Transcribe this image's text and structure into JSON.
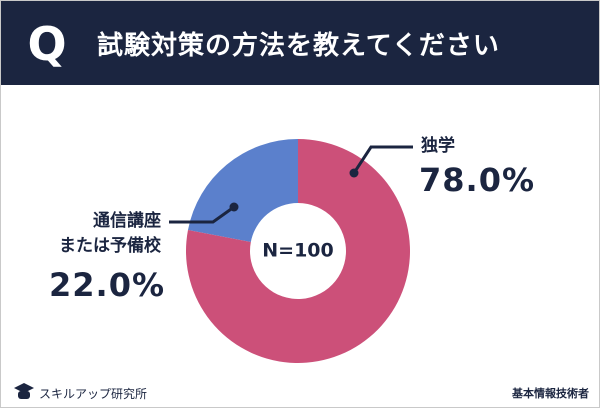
{
  "chart_data": {
    "type": "donut",
    "question_label": "Q",
    "title": "試験対策の方法を教えてください",
    "center_label": "N=100",
    "categories": [
      "独学",
      "通信講座\nまたは予備校"
    ],
    "values": [
      78.0,
      22.0
    ],
    "value_labels": [
      "78.0%",
      "22.0%"
    ],
    "colors": [
      "#cc5079",
      "#5b80cc"
    ]
  },
  "footer": {
    "brand": "スキルアップ研究所",
    "exam": "基本情報技術者"
  }
}
